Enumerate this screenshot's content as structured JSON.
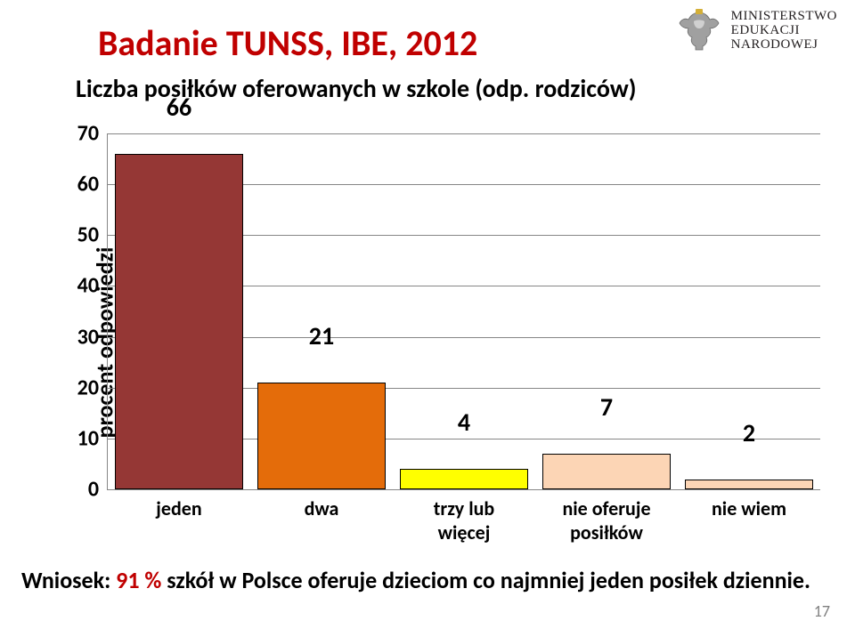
{
  "header": {
    "ministry_l1": "MINISTERSTWO",
    "ministry_l2": "EDUKACJI",
    "ministry_l3": "NARODOWEJ"
  },
  "title": "Badanie TUNSS, IBE, 2012",
  "subtitle": "Liczba posiłków oferowanych w szkole (odp. rodziców)",
  "chart": {
    "type": "bar",
    "y_axis_title": "procent odpowiedzi",
    "ylim": [
      0,
      70
    ],
    "ytick_step": 10,
    "yticks": [
      0,
      10,
      20,
      30,
      40,
      50,
      60,
      70
    ],
    "categories": [
      "jeden",
      "dwa",
      "trzy lub więcej",
      "nie oferuje posiłków",
      "nie wiem"
    ],
    "values": [
      66,
      21,
      4,
      7,
      2
    ],
    "bar_colors": [
      "#953735",
      "#e46c0a",
      "#ffff00",
      "#fcd5b5",
      "#fcd5b5"
    ],
    "bar_border_color": "#000000",
    "grid_color": "#868686",
    "axis_color": "#868686",
    "background_color": "#ffffff",
    "label_fontsize": 28,
    "tick_fontsize": 24,
    "xtick_fontsize": 22,
    "yaxis_title_fontsize": 26,
    "font_weight": "bold",
    "bar_width_ratio": 0.9
  },
  "footnote": {
    "lead": "Wniosek: ",
    "highlight": " 91 % ",
    "rest": "szkół w Polsce oferuje dzieciom co najmniej jeden posiłek dziennie."
  },
  "page_number": "17",
  "colors": {
    "title_color": "#c00000",
    "text_color": "#000000",
    "page_num_color": "#808080"
  }
}
